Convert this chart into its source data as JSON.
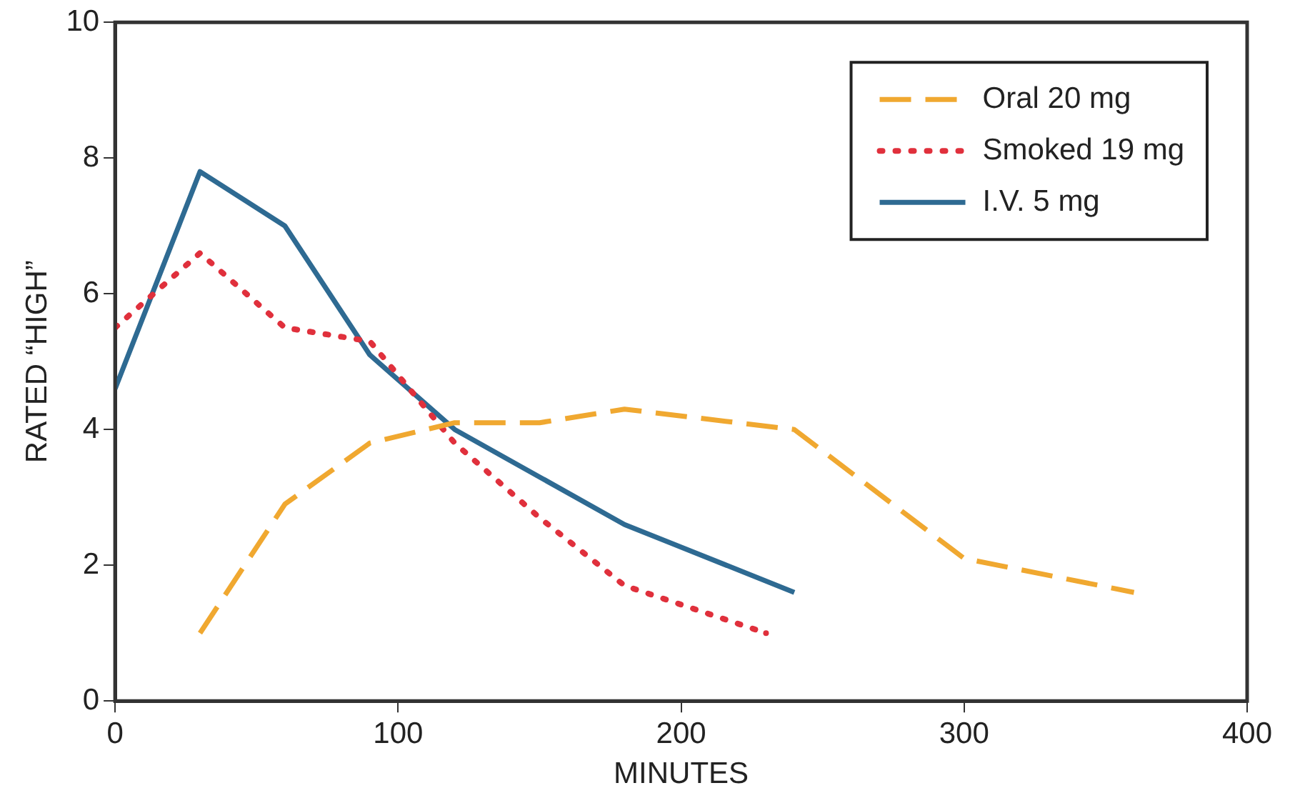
{
  "chart_data": {
    "type": "line",
    "xlabel": "MINUTES",
    "ylabel": "RATED “HIGH”",
    "xlim": [
      0,
      400
    ],
    "xticks": [
      0,
      100,
      200,
      300,
      400
    ],
    "ylim": [
      0,
      10
    ],
    "yticks": [
      0,
      2,
      4,
      6,
      8,
      10
    ],
    "grid": false,
    "legend": "top right",
    "marker": "none",
    "series": [
      {
        "name": "Oral 20 mg",
        "color": "#f0a830",
        "line_style": "dashed",
        "x": [
          30,
          60,
          90,
          120,
          150,
          180,
          240,
          300,
          360
        ],
        "values": [
          1.0,
          2.9,
          3.8,
          4.1,
          4.1,
          4.3,
          4.0,
          2.1,
          1.6
        ]
      },
      {
        "name": "Smoked 19 mg",
        "color": "#e0303c",
        "line_style": "dotted",
        "x": [
          0,
          30,
          60,
          90,
          120,
          150,
          180,
          230
        ],
        "values": [
          5.5,
          6.6,
          5.5,
          5.3,
          3.8,
          2.7,
          1.7,
          1.0
        ]
      },
      {
        "name": "I.V. 5 mg",
        "color": "#2e6a92",
        "line_style": "solid",
        "x": [
          0,
          30,
          60,
          90,
          120,
          150,
          180,
          240
        ],
        "values": [
          4.6,
          7.8,
          7.0,
          5.1,
          4.0,
          3.3,
          2.6,
          1.6
        ]
      }
    ]
  }
}
